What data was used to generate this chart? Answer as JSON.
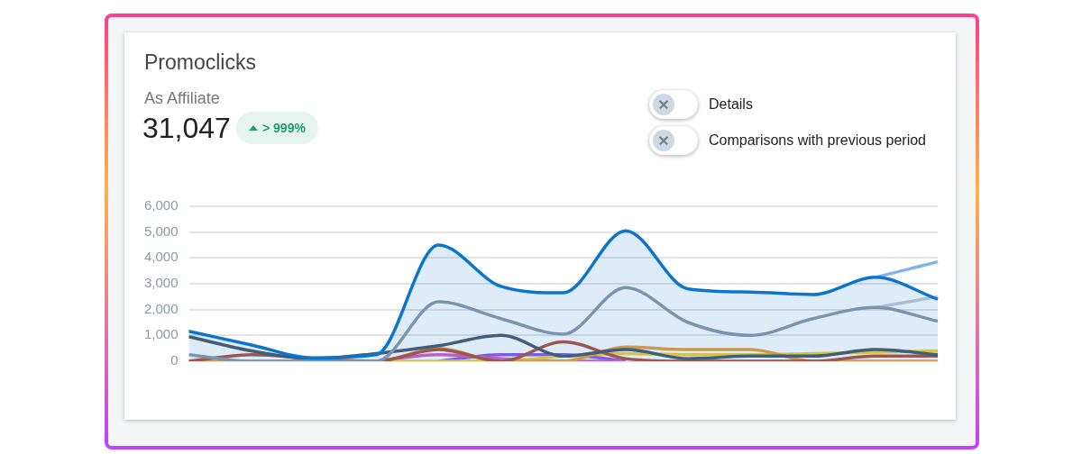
{
  "chart_data": {
    "type": "line",
    "title": "Promoclicks",
    "subtitle": "As Affiliate",
    "annotations": [
      "31,047",
      "> 999%",
      "Details",
      "Comparisons with previous period"
    ],
    "categories": [
      null,
      null,
      null,
      null,
      null,
      null,
      null,
      null,
      null,
      null,
      null,
      null,
      null
    ],
    "series": [
      {
        "type": "area",
        "color": "#0a74cf",
        "values": [
          1160,
          630,
          130,
          250,
          4500,
          2900,
          2650,
          5050,
          2800,
          2680,
          2580,
          3250,
          2400
        ]
      },
      {
        "color": "#7fb6e6",
        "values": [
          null,
          null,
          null,
          null,
          null,
          null,
          null,
          null,
          null,
          null,
          null,
          3250,
          3850
        ]
      },
      {
        "color": "#8d9aa8",
        "values": [
          250,
          0,
          0,
          0,
          2300,
          1650,
          1050,
          2850,
          1500,
          1000,
          1650,
          2080,
          1550
        ]
      },
      {
        "color": "#c4cbd2",
        "values": [
          null,
          null,
          null,
          null,
          null,
          null,
          null,
          null,
          null,
          null,
          null,
          2080,
          2500
        ]
      },
      {
        "color": "#4a5a6b",
        "values": [
          950,
          400,
          100,
          300,
          600,
          1000,
          200,
          450,
          100,
          200,
          200,
          450,
          250
        ]
      },
      {
        "color": "#b5523b",
        "values": [
          0,
          250,
          100,
          0,
          450,
          0,
          750,
          100,
          0,
          0,
          0,
          200,
          200
        ]
      },
      {
        "color": "#e8a13c",
        "values": [
          0,
          0,
          0,
          0,
          500,
          0,
          0,
          550,
          450,
          450,
          0,
          0,
          0
        ]
      },
      {
        "color": "#f2cf3a",
        "values": [
          null,
          null,
          0,
          0,
          0,
          0,
          200,
          300,
          250,
          250,
          300,
          350,
          400
        ]
      },
      {
        "color": "#d65ec9",
        "values": [
          null,
          null,
          null,
          0,
          250,
          100,
          0,
          0,
          null,
          null,
          null,
          null,
          null
        ]
      },
      {
        "color": "#8c5be6",
        "values": [
          null,
          null,
          null,
          null,
          0,
          250,
          250,
          0,
          null,
          null,
          null,
          null,
          null
        ]
      }
    ],
    "ylim": [
      0,
      6000
    ],
    "yticks": [
      0,
      {
        "value": 1000,
        "label": "1,000"
      },
      {
        "value": 2000,
        "label": "2,000"
      },
      {
        "value": 3000,
        "label": "3,000"
      },
      {
        "value": 4000,
        "label": "4,000"
      },
      {
        "value": 5000,
        "label": "5,000"
      },
      {
        "value": 6000,
        "label": "6,000"
      }
    ],
    "grid": "y",
    "tick_labels": "y",
    "legend": false,
    "marker": "none"
  }
}
